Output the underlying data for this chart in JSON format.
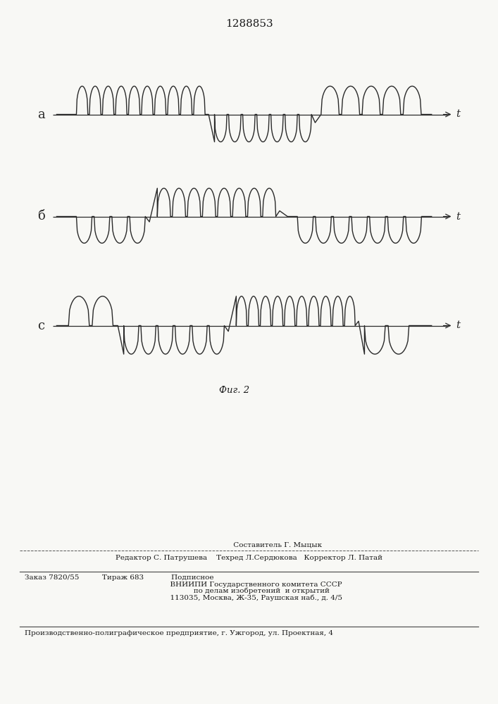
{
  "title": "1288853",
  "fig_caption": "Фиг. 2",
  "background_color": "#f8f8f5",
  "line_color": "#2a2a2a",
  "axis_color": "#2a2a2a",
  "waveform_labels": [
    "а",
    "б",
    "с"
  ],
  "bottom_text_lines": [
    "                         Составитель Г. Мыцык",
    "Редактор С. Патрушева    Техред Л.Сердюкова   Корректор Л. Патай",
    "Заказ 7820/55          Тираж 683            Подписное",
    "      ВНИИПИ Государственного комитета СССР",
    "           по делам изобретений  и открытий",
    "      113035, Москва, Ж-35, Раушская наб., д. 4/5",
    "Производственно-полиграфическое предприятие, г. Ужгород, ул. Проектная, 4"
  ]
}
